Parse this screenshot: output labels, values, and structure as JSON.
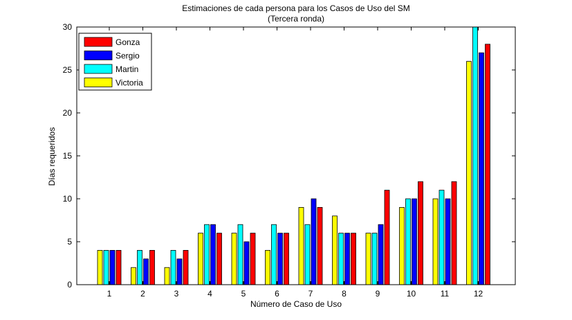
{
  "chart_data": {
    "type": "bar",
    "title": "Estimaciones de cada persona para los Casos de Uso del SM",
    "subtitle": "(Tercera ronda)",
    "xlabel": "Número de Caso de Uso",
    "ylabel": "Días requeridos",
    "categories": [
      "1",
      "2",
      "3",
      "4",
      "5",
      "6",
      "7",
      "8",
      "9",
      "10",
      "11",
      "12"
    ],
    "ylim": [
      0,
      30
    ],
    "yticks": [
      0,
      5,
      10,
      15,
      20,
      25,
      30
    ],
    "grid": false,
    "legend_position": "top-left",
    "legend_order": [
      "Gonza",
      "Sergio",
      "Martin",
      "Victoria"
    ],
    "series": [
      {
        "name": "Victoria",
        "color": "#ffff00",
        "values": [
          4,
          2,
          2,
          6,
          6,
          4,
          9,
          8,
          6,
          9,
          10,
          26
        ]
      },
      {
        "name": "Martin",
        "color": "#00ffff",
        "values": [
          4,
          4,
          4,
          7,
          7,
          7,
          7,
          6,
          6,
          10,
          11,
          30
        ]
      },
      {
        "name": "Sergio",
        "color": "#0000ff",
        "values": [
          4,
          3,
          3,
          7,
          5,
          6,
          10,
          6,
          7,
          10,
          10,
          27
        ]
      },
      {
        "name": "Gonza",
        "color": "#ff0000",
        "values": [
          4,
          4,
          4,
          6,
          6,
          6,
          9,
          6,
          11,
          12,
          12,
          28
        ]
      }
    ]
  }
}
